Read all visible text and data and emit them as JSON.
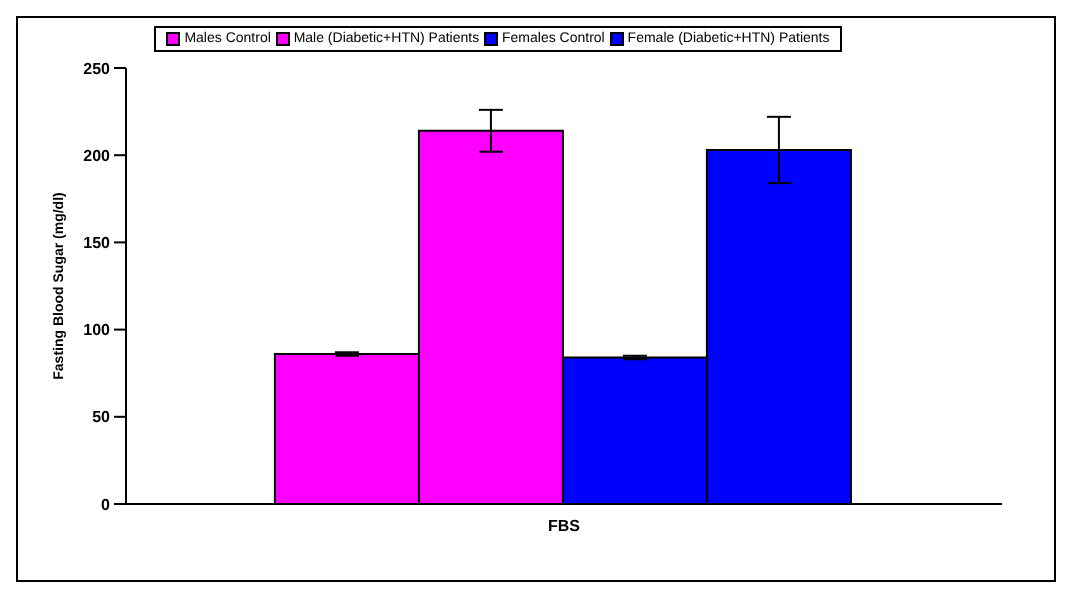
{
  "chart_data": {
    "type": "bar",
    "categories": [
      "FBS"
    ],
    "ylabel": "Fasting Blood Sugar (mg/dl)",
    "series": [
      {
        "name": "Males Control",
        "color": "#ff00ff",
        "values": [
          86
        ],
        "errors": [
          1
        ]
      },
      {
        "name": "Male (Diabetic+HTN) Patients",
        "color": "#ff00ff",
        "values": [
          214
        ],
        "errors": [
          12
        ]
      },
      {
        "name": "Females Control",
        "color": "#0000ff",
        "values": [
          84
        ],
        "errors": [
          1
        ]
      },
      {
        "name": "Female (Diabetic+HTN) Patients",
        "color": "#0000ff",
        "values": [
          203
        ],
        "errors": [
          19
        ]
      }
    ],
    "ylim": [
      0,
      250
    ],
    "yticks": [
      0,
      50,
      100,
      150,
      200,
      250
    ],
    "grid": false,
    "legend": "top"
  }
}
